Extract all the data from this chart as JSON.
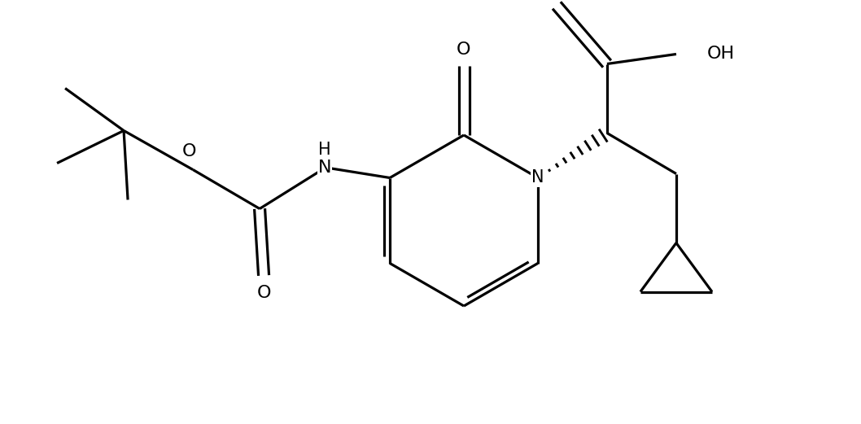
{
  "background_color": "#ffffff",
  "line_color": "#000000",
  "line_width": 2.3,
  "font_size": 15,
  "figsize": [
    10.58,
    5.21
  ],
  "dpi": 100,
  "xlim": [
    0,
    10.58
  ],
  "ylim": [
    0,
    5.21
  ]
}
